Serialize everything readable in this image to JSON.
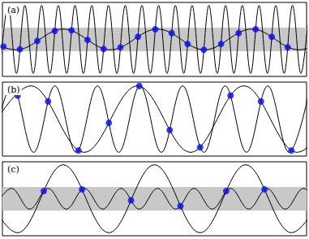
{
  "chart_data": [
    {
      "type": "line",
      "title": "(a)",
      "xlim": [
        0,
        100
      ],
      "ylim": [
        -1,
        1
      ],
      "band": [
        -0.32,
        0.32
      ],
      "tick_labels": false,
      "series": [
        {
          "type": "line",
          "color": "#000000",
          "line_style": "solid",
          "x": [
            -0.875,
            1.875,
            4.625,
            7.375,
            10.125,
            12.875,
            15.625,
            18.375,
            21.125,
            23.875,
            26.625,
            29.375,
            32.125,
            34.875,
            37.625,
            40.375,
            43.125,
            45.875,
            48.625,
            51.375,
            54.125,
            56.875,
            59.625,
            62.375,
            65.125,
            67.875,
            70.625,
            73.375,
            76.125,
            78.875,
            81.625,
            84.375,
            87.125,
            89.875,
            92.625,
            95.375,
            98.125,
            100.875
          ],
          "values": [
            -0.92,
            0.92,
            -0.92,
            0.92,
            -0.92,
            0.92,
            -0.92,
            0.92,
            -0.92,
            0.92,
            -0.92,
            0.92,
            -0.92,
            0.92,
            -0.92,
            0.92,
            -0.92,
            0.92,
            -0.92,
            0.92,
            -0.92,
            0.92,
            -0.92,
            0.92,
            -0.92,
            0.92,
            -0.92,
            0.92,
            -0.92,
            0.92,
            -0.92,
            0.92,
            -0.92,
            0.92,
            -0.92,
            0.92,
            -0.92,
            0.92
          ]
        },
        {
          "type": "line",
          "color": "#000000",
          "line_style": "solid",
          "x": [
            -11,
            4.5,
            20,
            35.5,
            51,
            66.5,
            82,
            97.5,
            113
          ],
          "values": [
            0.28,
            -0.28,
            0.28,
            -0.28,
            0.28,
            -0.28,
            0.28,
            -0.28,
            0.28
          ]
        },
        {
          "type": "scatter",
          "color": "#0a0af0",
          "marker": "circle",
          "x": [
            0.32,
            5.75,
            11.46,
            17.22,
            22.73,
            27.99,
            33.26,
            38.8,
            44.57,
            50.26,
            55.66,
            60.88,
            66.23,
            71.88,
            77.66,
            83.26,
            88.57,
            93.8
          ],
          "values": [
            -0.193,
            -0.267,
            -0.042,
            0.23,
            0.245,
            -0.014,
            -0.257,
            -0.213,
            0.07,
            0.274,
            0.171,
            -0.123,
            -0.28,
            -0.123,
            0.171,
            0.274,
            0.07,
            -0.213
          ]
        }
      ]
    },
    {
      "type": "line",
      "title": "(b)",
      "xlim": [
        0,
        100
      ],
      "ylim": [
        -1,
        1
      ],
      "tick_labels": false,
      "series": [
        {
          "type": "line",
          "color": "#000000",
          "line_style": "solid",
          "x": [
            -3.75,
            3.25,
            10.25,
            17.25,
            24.25,
            31.25,
            38.25,
            45.25,
            52.25,
            59.25,
            66.25,
            73.25,
            80.25,
            87.25,
            94.25,
            101.25
          ],
          "values": [
            -0.9,
            0.9,
            -0.9,
            0.9,
            -0.9,
            0.9,
            -0.9,
            0.9,
            -0.9,
            0.9,
            -0.9,
            0.9,
            -0.9,
            0.9,
            -0.9,
            0.9
          ]
        },
        {
          "type": "line",
          "color": "#000000",
          "line_style": "solid",
          "x": [
            -8.125,
            9.375,
            26.875,
            44.375,
            61.875,
            79.375,
            96.875,
            114.375
          ],
          "values": [
            -0.9,
            0.9,
            -0.9,
            0.9,
            -0.9,
            0.9,
            -0.9,
            0.9
          ]
        },
        {
          "type": "scatter",
          "color": "#0a0af0",
          "marker": "circle",
          "x": [
            5,
            15,
            25,
            35,
            45,
            55,
            65,
            75,
            85,
            95
          ],
          "values": [
            0.636,
            0.479,
            -0.849,
            -0.101,
            0.894,
            -0.297,
            -0.762,
            0.636,
            0.479,
            -0.849
          ]
        }
      ]
    },
    {
      "type": "line",
      "title": "(c)",
      "xlim": [
        0,
        100
      ],
      "ylim": [
        -1,
        1
      ],
      "band": [
        -0.32,
        0.32
      ],
      "tick_labels": false,
      "series": [
        {
          "type": "line",
          "color": "#000000",
          "line_style": "solid",
          "x": [
            -10,
            5,
            20,
            35,
            50,
            65,
            80,
            95,
            110
          ],
          "values": [
            0.92,
            -0.92,
            0.92,
            -0.92,
            0.92,
            -0.92,
            0.92,
            -0.92,
            0.92
          ]
        },
        {
          "type": "line",
          "color": "#000000",
          "line_style": "solid",
          "x": [
            -3,
            3,
            9,
            15,
            21,
            27,
            33,
            39,
            45,
            51,
            57,
            63,
            69,
            75,
            81,
            87,
            93,
            99,
            105
          ],
          "values": [
            -0.28,
            0.28,
            -0.28,
            0.28,
            -0.28,
            0.28,
            -0.28,
            0.28,
            -0.28,
            0.28,
            -0.28,
            0.28,
            -0.28,
            0.28,
            -0.28,
            0.28,
            -0.28,
            0.28,
            -0.28
          ]
        },
        {
          "type": "scatter",
          "color": "#0a0af0",
          "marker": "circle",
          "x": [
            13.6,
            26.17,
            42.29,
            58.53,
            73.59,
            86.17
          ],
          "values": [
            0.209,
            0.255,
            -0.042,
            -0.196,
            0.209,
            0.255
          ]
        }
      ]
    }
  ]
}
